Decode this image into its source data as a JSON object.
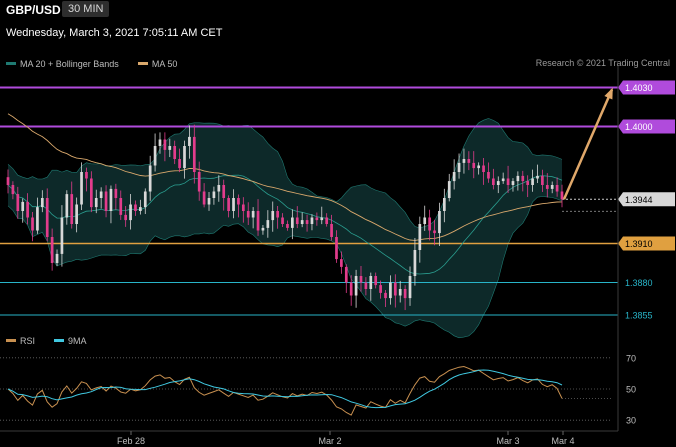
{
  "header": {
    "symbol": "GBP/USD",
    "interval": "30 MIN"
  },
  "datetime": "Wednesday, March 3, 2021 7:05:11 AM CET",
  "credit": "Research © 2021 Trading Central",
  "colors": {
    "background": "#000000",
    "candle_up": "#d8d8d8",
    "candle_down": "#e23c8c",
    "bollinger_fill": "#0e2e2e",
    "bollinger_line": "#1f7a72",
    "ma20": "#2a9d8f",
    "ma50": "#d9a86c",
    "resistance": "#b04bdc",
    "support_major": "#e0a040",
    "support_minor": "#28b4c8",
    "arrow": "#e0a86a",
    "rsi": "#c89050",
    "rsi_ma": "#40c8e0"
  },
  "chart_data": [
    {
      "type": "candlestick",
      "title": "",
      "legend": [
        {
          "name": "MA 20 + Bollinger Bands",
          "color": "#1f7a72"
        },
        {
          "name": "MA 50",
          "color": "#d9a86c"
        }
      ],
      "legend_position": "top-left",
      "x_ticks": [
        "Feb 28",
        "Mar 2",
        "Mar 3",
        "Mar 4"
      ],
      "ylim": [
        1.3845,
        1.4045
      ],
      "grid": false,
      "price_levels": [
        {
          "value": 1.403,
          "label": "1.4030",
          "kind": "resistance"
        },
        {
          "value": 1.4,
          "label": "1.4000",
          "kind": "resistance"
        },
        {
          "value": 1.3944,
          "label": "1.3944",
          "kind": "last-price"
        },
        {
          "value": 1.391,
          "label": "1.3910",
          "kind": "support-major"
        },
        {
          "value": 1.388,
          "label": "1.3880",
          "kind": "support-minor"
        },
        {
          "value": 1.3855,
          "label": "1.3855",
          "kind": "support-minor"
        }
      ],
      "closes": [
        1.3955,
        1.3948,
        1.3935,
        1.3942,
        1.393,
        1.392,
        1.3938,
        1.3945,
        1.3915,
        1.3895,
        1.3902,
        1.393,
        1.3948,
        1.3925,
        1.394,
        1.3965,
        1.396,
        1.3938,
        1.3945,
        1.395,
        1.3935,
        1.3952,
        1.3945,
        1.3932,
        1.3928,
        1.394,
        1.3935,
        1.3938,
        1.395,
        1.397,
        1.3985,
        1.399,
        1.3982,
        1.3985,
        1.3975,
        1.3968,
        1.3985,
        1.3992,
        1.3965,
        1.395,
        1.394,
        1.3945,
        1.395,
        1.3955,
        1.3945,
        1.3935,
        1.3945,
        1.394,
        1.3935,
        1.393,
        1.3935,
        1.392,
        1.3922,
        1.3928,
        1.3935,
        1.393,
        1.3925,
        1.3922,
        1.393,
        1.3925,
        1.3928,
        1.3925,
        1.393,
        1.3928,
        1.393,
        1.3925,
        1.3915,
        1.3898,
        1.3892,
        1.388,
        1.387,
        1.3885,
        1.388,
        1.3875,
        1.3885,
        1.3878,
        1.3872,
        1.3868,
        1.388,
        1.387,
        1.3875,
        1.3868,
        1.3885,
        1.3905,
        1.3925,
        1.393,
        1.392,
        1.3918,
        1.3935,
        1.3945,
        1.3958,
        1.3965,
        1.3972,
        1.3975,
        1.3972,
        1.3968,
        1.397,
        1.3965,
        1.396,
        1.3955,
        1.3958,
        1.396,
        1.3955,
        1.3958,
        1.3962,
        1.3958,
        1.3955,
        1.396,
        1.3962,
        1.3955,
        1.3952,
        1.3955,
        1.395,
        1.3944
      ],
      "ma20_start": 1.3945,
      "ma50_start": 1.4012,
      "projection": {
        "from": 1.3944,
        "to": 1.403
      }
    },
    {
      "type": "line",
      "title": "",
      "legend": [
        {
          "name": "RSI",
          "color": "#c89050"
        },
        {
          "name": "9MA",
          "color": "#40c8e0"
        }
      ],
      "legend_position": "top-left",
      "ylim": [
        25,
        75
      ],
      "y_ticks": [
        "70",
        "50",
        "30"
      ],
      "y_tick_values": [
        70,
        50,
        30
      ],
      "reference_levels": [
        70,
        50,
        30,
        44
      ],
      "rsi_last": 44
    }
  ]
}
